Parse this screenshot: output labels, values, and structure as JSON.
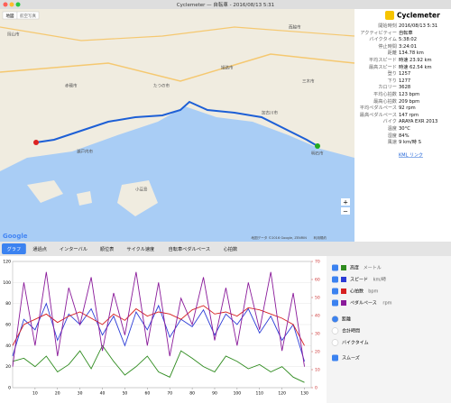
{
  "window": {
    "title": "Cyclemeter — 自転車 - 2016/08/13 5:31"
  },
  "map": {
    "buttons": [
      "地図",
      "航空写真"
    ],
    "zoom": [
      "+",
      "−"
    ],
    "logo": "Google",
    "attribution": "地図データ ©2016 Google, ZENRIN",
    "terms": "利用規約",
    "labels": [
      "岡山市",
      "赤穂市",
      "たつの市",
      "姫路市",
      "加古川市",
      "明石市",
      "三木市",
      "小豆島",
      "瀬戸内市",
      "西脇市"
    ]
  },
  "summary": {
    "app": "Cyclemeter",
    "link": "KML リンク",
    "rows": [
      [
        "開始時刻",
        "2016/08/13 5:31"
      ],
      [
        "アクティビティー",
        "自転車"
      ],
      [
        "バイクタイム",
        "5:38:02"
      ],
      [
        "停止時間",
        "3:24:01"
      ],
      [
        "距離",
        "134.78 km"
      ],
      [
        "平均スピード",
        "時速 23.92 km"
      ],
      [
        "最高スピード",
        "時速 62.54 km"
      ],
      [
        "登り",
        "1257"
      ],
      [
        "下り",
        "1277"
      ],
      [
        "カロリー",
        "3628"
      ],
      [
        "平均心拍数",
        "123 bpm"
      ],
      [
        "最高心拍数",
        "209 bpm"
      ],
      [
        "平均ペダルペース",
        "92 rpm"
      ],
      [
        "最高ペダルペース",
        "147 rpm"
      ],
      [
        "バイク",
        "ARAYA EXR 2013"
      ],
      [
        "温度",
        "30°C"
      ],
      [
        "湿度",
        "84%"
      ],
      [
        "風速",
        "9 km/時 S"
      ]
    ]
  },
  "tabs": [
    "グラフ",
    "通過点",
    "インターバル",
    "順位表",
    "サイクル速度",
    "自転車ペダルペース",
    "心拍数"
  ],
  "chart_data": {
    "type": "line",
    "x": [
      0,
      5,
      10,
      15,
      20,
      25,
      30,
      35,
      40,
      45,
      50,
      55,
      60,
      65,
      70,
      75,
      80,
      85,
      90,
      95,
      100,
      105,
      110,
      115,
      120,
      125,
      130
    ],
    "xlim": [
      0,
      133
    ],
    "xticks": [
      10,
      20,
      30,
      40,
      50,
      60,
      70,
      80,
      90,
      100,
      110,
      120,
      130
    ],
    "ylim": [
      0,
      120
    ],
    "yticks": [
      0,
      20,
      40,
      60,
      80,
      100,
      120
    ],
    "y2lim": [
      0,
      70
    ],
    "y2ticks": [
      0,
      10,
      20,
      30,
      40,
      50,
      60,
      70
    ],
    "series": [
      {
        "name": "高度",
        "unit": "メートル",
        "color": "#2e8b1e",
        "values": [
          25,
          28,
          20,
          30,
          15,
          22,
          35,
          18,
          40,
          25,
          12,
          20,
          30,
          15,
          10,
          35,
          28,
          20,
          15,
          30,
          25,
          18,
          22,
          15,
          20,
          10,
          5
        ]
      },
      {
        "name": "スピード",
        "unit": "km/時",
        "color": "#2b3bd6",
        "values": [
          30,
          65,
          55,
          80,
          45,
          70,
          60,
          75,
          50,
          68,
          40,
          72,
          55,
          78,
          48,
          65,
          58,
          74,
          50,
          70,
          60,
          75,
          52,
          68,
          45,
          60,
          25
        ]
      },
      {
        "name": "心拍数",
        "unit": "bpm",
        "color": "#d62020",
        "values": [
          40,
          60,
          65,
          70,
          62,
          68,
          72,
          66,
          60,
          70,
          64,
          75,
          68,
          72,
          70,
          65,
          74,
          78,
          70,
          72,
          68,
          76,
          74,
          70,
          66,
          60,
          40
        ]
      },
      {
        "name": "ペダルペース",
        "unit": "rpm",
        "color": "#8a1a9a",
        "values": [
          20,
          100,
          40,
          110,
          30,
          95,
          60,
          105,
          35,
          90,
          50,
          110,
          40,
          100,
          30,
          85,
          60,
          105,
          45,
          95,
          40,
          100,
          55,
          110,
          35,
          90,
          20
        ]
      }
    ]
  },
  "options": {
    "x_axis": [
      "距離",
      "合計時間",
      "バイクタイム"
    ],
    "smooth": "スムーズ"
  }
}
